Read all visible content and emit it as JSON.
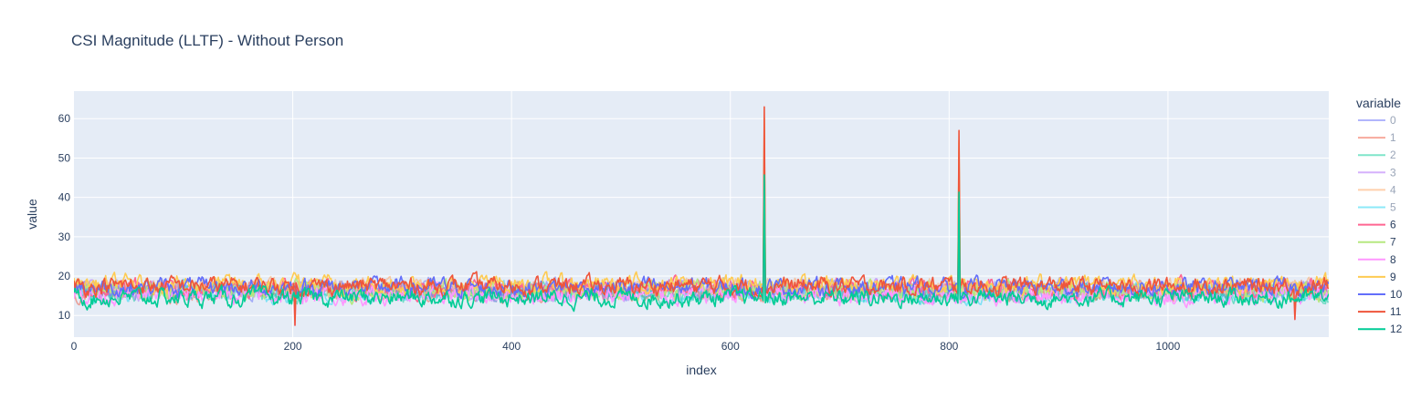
{
  "chart_data": {
    "type": "line",
    "title": "CSI Magnitude (LLTF) - Without Person",
    "xlabel": "index",
    "ylabel": "value",
    "xlim": [
      0,
      1147
    ],
    "ylim": [
      4.5,
      67
    ],
    "x_ticks": [
      0,
      200,
      400,
      600,
      800,
      1000
    ],
    "x_tick_labels": [
      "0",
      "200",
      "400",
      "600",
      "800",
      "1000"
    ],
    "y_ticks": [
      10,
      20,
      30,
      40,
      50,
      60
    ],
    "y_tick_labels": [
      "10",
      "20",
      "30",
      "40",
      "50",
      "60"
    ],
    "legend_title": "variable",
    "legend_position": "right",
    "series": [
      {
        "name": "0",
        "color": "#636efa",
        "opacity": 0.5,
        "base": 16.5
      },
      {
        "name": "1",
        "color": "#ef553b",
        "opacity": 0.5,
        "base": 16.0
      },
      {
        "name": "2",
        "color": "#00cc96",
        "opacity": 0.5,
        "base": 15.5
      },
      {
        "name": "3",
        "color": "#ab63fa",
        "opacity": 0.5,
        "base": 16.2
      },
      {
        "name": "4",
        "color": "#ffa15a",
        "opacity": 0.5,
        "base": 17.0
      },
      {
        "name": "5",
        "color": "#19d3f3",
        "opacity": 0.5,
        "base": 15.8
      },
      {
        "name": "6",
        "color": "#ff6692",
        "opacity": 1.0,
        "base": 16.8
      },
      {
        "name": "7",
        "color": "#b6e880",
        "opacity": 1.0,
        "base": 16.3
      },
      {
        "name": "8",
        "color": "#ff97ff",
        "opacity": 1.0,
        "base": 15.2
      },
      {
        "name": "9",
        "color": "#fecb52",
        "opacity": 1.0,
        "base": 18.0
      },
      {
        "name": "10",
        "color": "#636efa",
        "opacity": 1.0,
        "base": 17.2
      },
      {
        "name": "11",
        "color": "#ef553b",
        "opacity": 1.0,
        "base": 17.5
      },
      {
        "name": "12",
        "color": "#00cc96",
        "opacity": 1.0,
        "base": 14.5
      }
    ],
    "series_value_range": [
      10,
      22
    ],
    "spikes": [
      {
        "x": 631,
        "peak": 63
      },
      {
        "x": 809,
        "peak": 57
      }
    ],
    "dips": [
      {
        "x": 202,
        "value": 7.5
      },
      {
        "x": 1116,
        "value": 9
      }
    ]
  }
}
